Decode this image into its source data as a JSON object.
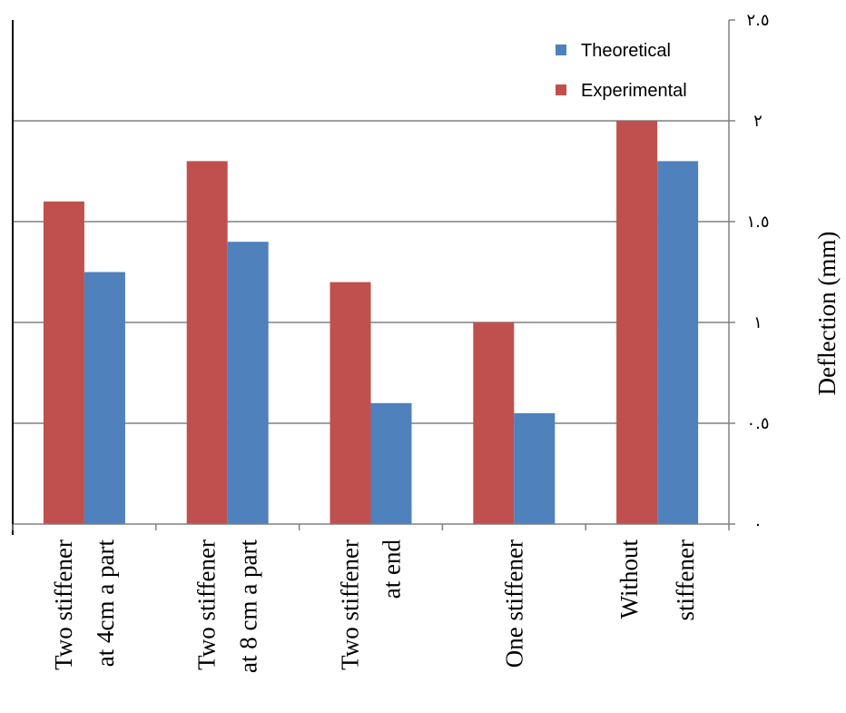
{
  "chart_data": {
    "type": "bar",
    "categories": [
      [
        "Two stiffener",
        "at 4cm a part"
      ],
      [
        "Two stiffener",
        "at 8 cm a part"
      ],
      [
        "Two stiffener",
        "at end"
      ],
      [
        "One stiffener"
      ],
      [
        "Without",
        "stiffener"
      ]
    ],
    "series": [
      {
        "name": "Experimental",
        "color": "#C0504D",
        "values": [
          1.6,
          1.8,
          1.2,
          1.0,
          2.0
        ]
      },
      {
        "name": "Theoretical",
        "color": "#4F81BD",
        "values": [
          1.25,
          1.4,
          0.6,
          0.55,
          1.8
        ]
      }
    ],
    "ylabel": "Deflection (mm)",
    "ylim": [
      0,
      2.5
    ],
    "y_ticks": [
      0,
      0.5,
      1,
      1.5,
      2,
      2.5
    ],
    "y_tick_labels": [
      "٠",
      "٠.٥",
      "١",
      "١.٥",
      "٢",
      "٢.٥"
    ],
    "y_axis_side": "right",
    "grid": true,
    "legend": {
      "position": "top-right",
      "entries": [
        {
          "label": "Theoretical",
          "color": "#4F81BD"
        },
        {
          "label": "Experimental",
          "color": "#C0504D"
        }
      ]
    }
  }
}
